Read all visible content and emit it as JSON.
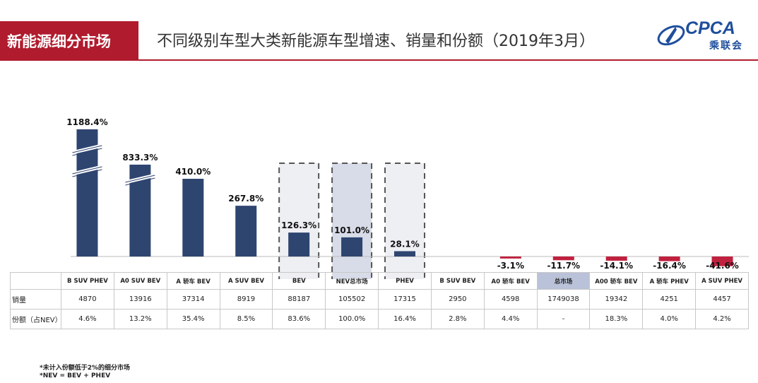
{
  "header": {
    "tab_label": "新能源细分市场",
    "title": "不同级别车型大类新能源车型增速、销量和份额（2019年3月）",
    "logo_text": "CPCA",
    "logo_sub": "乘联会"
  },
  "colors": {
    "brand": "#b01b2e",
    "positive_bar": "#2e4570",
    "negative_bar": "#c0213e",
    "highlight_cell": "#b9c2d8"
  },
  "chart_data": {
    "type": "bar",
    "categories": [
      "B SUV PHEV",
      "A0 SUV BEV",
      "A 轿车 BEV",
      "A SUV BEV",
      "BEV",
      "NEV总市场",
      "PHEV",
      "B SUV BEV",
      "A0 轿车 BEV",
      "总市场",
      "A00 轿车 BEV",
      "A 轿车 PHEV",
      "A SUV PHEV"
    ],
    "values": [
      1188.4,
      833.3,
      410.0,
      267.8,
      126.3,
      101.0,
      28.1,
      0,
      -3.1,
      -11.7,
      -14.1,
      -16.4,
      -41.6
    ],
    "value_labels": [
      "1188.4%",
      "833.3%",
      "410.0%",
      "267.8%",
      "126.3%",
      "101.0%",
      "28.1%",
      "",
      "-3.1%",
      "-11.7%",
      "-14.1%",
      "-16.4%",
      "-41.6%"
    ],
    "axis_break_bars": [
      "B SUV PHEV",
      "A0 SUV BEV"
    ],
    "highlighted_groups": [
      "BEV",
      "NEV总市场",
      "PHEV"
    ]
  },
  "table": {
    "row_labels": [
      "销量",
      "份额（占NEV）"
    ],
    "columns": [
      {
        "name": "B SUV PHEV",
        "sales": "4870",
        "share": "4.6%"
      },
      {
        "name": "A0 SUV BEV",
        "sales": "13916",
        "share": "13.2%"
      },
      {
        "name": "A 轿车 BEV",
        "sales": "37314",
        "share": "35.4%"
      },
      {
        "name": "A SUV BEV",
        "sales": "8919",
        "share": "8.5%"
      },
      {
        "name": "BEV",
        "sales": "88187",
        "share": "83.6%"
      },
      {
        "name": "NEV总市场",
        "sales": "105502",
        "share": "100.0%"
      },
      {
        "name": "PHEV",
        "sales": "17315",
        "share": "16.4%"
      },
      {
        "name": "B SUV BEV",
        "sales": "2950",
        "share": "2.8%"
      },
      {
        "name": "A0 轿车 BEV",
        "sales": "4598",
        "share": "4.4%"
      },
      {
        "name": "总市场",
        "sales": "1749038",
        "share": "-"
      },
      {
        "name": "A00 轿车 BEV",
        "sales": "19342",
        "share": "18.3%"
      },
      {
        "name": "A 轿车 PHEV",
        "sales": "4251",
        "share": "4.0%"
      },
      {
        "name": "A SUV PHEV",
        "sales": "4457",
        "share": "4.2%"
      }
    ]
  },
  "notes": [
    "*未计入份额低于2%的细分市场",
    "*NEV = BEV + PHEV"
  ]
}
